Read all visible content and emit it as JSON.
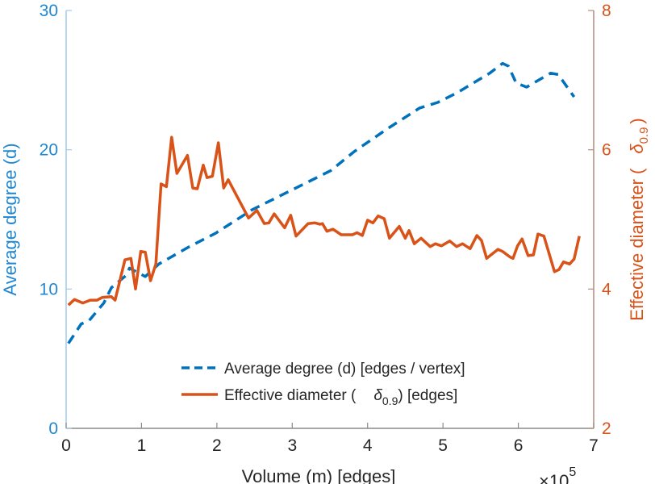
{
  "chart_data": {
    "type": "line",
    "title": "",
    "xlabel": "Volume (m) [edges]",
    "x_multiplier": "×10",
    "x_multiplier_exp": "5",
    "ylabel_left": "Average degree (d)",
    "ylabel_right_prefix": "Effective diameter (",
    "ylabel_right_symbol": "δ",
    "ylabel_right_sub": "0.9",
    "ylabel_right_suffix": ")",
    "xlim": [
      0,
      7
    ],
    "ylim_left": [
      0,
      30
    ],
    "ylim_right": [
      2,
      8
    ],
    "xticks": [
      "0",
      "1",
      "2",
      "3",
      "4",
      "5",
      "6",
      "7"
    ],
    "yticks_left": [
      "0",
      "10",
      "20",
      "30"
    ],
    "yticks_right": [
      "2",
      "4",
      "6",
      "8"
    ],
    "grid": false,
    "legend_position": "bottom-center",
    "colors": {
      "left": "#0072BD",
      "right": "#D95319"
    },
    "series": [
      {
        "name": "Average degree (d) [edges / vertex]",
        "axis": "left",
        "style": "dashed",
        "x": [
          0.03,
          0.2,
          0.3,
          0.5,
          0.6,
          0.8,
          0.84,
          1.05,
          1.23,
          1.62,
          1.98,
          2.47,
          3.51,
          3.83,
          4.26,
          4.69,
          4.93,
          5.19,
          5.62,
          5.79,
          5.87,
          5.97,
          6.11,
          6.43,
          6.53,
          6.74
        ],
        "y": [
          6.1,
          7.5,
          7.7,
          9.0,
          10.1,
          11.0,
          11.5,
          10.9,
          11.8,
          13.0,
          14.0,
          15.7,
          18.5,
          19.9,
          21.5,
          23.0,
          23.4,
          24.1,
          25.5,
          26.2,
          26.0,
          24.8,
          24.5,
          25.5,
          25.4,
          23.8
        ]
      },
      {
        "name_prefix": "Effective diameter (",
        "name_symbol": "δ",
        "name_sub": "0.9",
        "name_suffix": ") [edges]",
        "axis": "right",
        "style": "solid",
        "x": [
          0.03,
          0.11,
          0.22,
          0.32,
          0.41,
          0.48,
          0.6,
          0.65,
          0.78,
          0.86,
          0.92,
          0.99,
          1.05,
          1.12,
          1.19,
          1.26,
          1.33,
          1.4,
          1.47,
          1.61,
          1.68,
          1.74,
          1.82,
          1.87,
          1.94,
          2.02,
          2.09,
          2.15,
          2.42,
          2.53,
          2.63,
          2.69,
          2.76,
          2.9,
          2.98,
          3.05,
          3.21,
          3.3,
          3.37,
          3.4,
          3.46,
          3.54,
          3.65,
          3.8,
          3.86,
          3.93,
          4.0,
          4.07,
          4.14,
          4.22,
          4.29,
          4.42,
          4.5,
          4.55,
          4.62,
          4.71,
          4.83,
          4.9,
          4.98,
          5.09,
          5.18,
          5.26,
          5.36,
          5.45,
          5.51,
          5.58,
          5.73,
          5.79,
          5.89,
          5.93,
          5.99,
          6.05,
          6.13,
          6.2,
          6.26,
          6.34,
          6.48,
          6.54,
          6.6,
          6.68,
          6.74,
          6.81
        ],
        "y": [
          3.77,
          3.85,
          3.8,
          3.84,
          3.84,
          3.88,
          3.89,
          3.84,
          4.42,
          4.44,
          4.0,
          4.54,
          4.53,
          4.12,
          4.36,
          5.51,
          5.47,
          6.18,
          5.66,
          5.92,
          5.45,
          5.44,
          5.78,
          5.6,
          5.62,
          6.1,
          5.45,
          5.57,
          5.02,
          5.13,
          4.94,
          4.95,
          5.08,
          4.88,
          5.06,
          4.76,
          4.94,
          4.95,
          4.93,
          4.94,
          4.83,
          4.86,
          4.78,
          4.78,
          4.81,
          4.77,
          4.99,
          4.95,
          5.05,
          5.01,
          4.73,
          4.9,
          4.73,
          4.84,
          4.65,
          4.73,
          4.61,
          4.65,
          4.62,
          4.69,
          4.61,
          4.65,
          4.58,
          4.77,
          4.7,
          4.44,
          4.57,
          4.54,
          4.46,
          4.44,
          4.62,
          4.72,
          4.48,
          4.49,
          4.79,
          4.76,
          4.25,
          4.28,
          4.39,
          4.36,
          4.43,
          4.76
        ]
      }
    ]
  }
}
